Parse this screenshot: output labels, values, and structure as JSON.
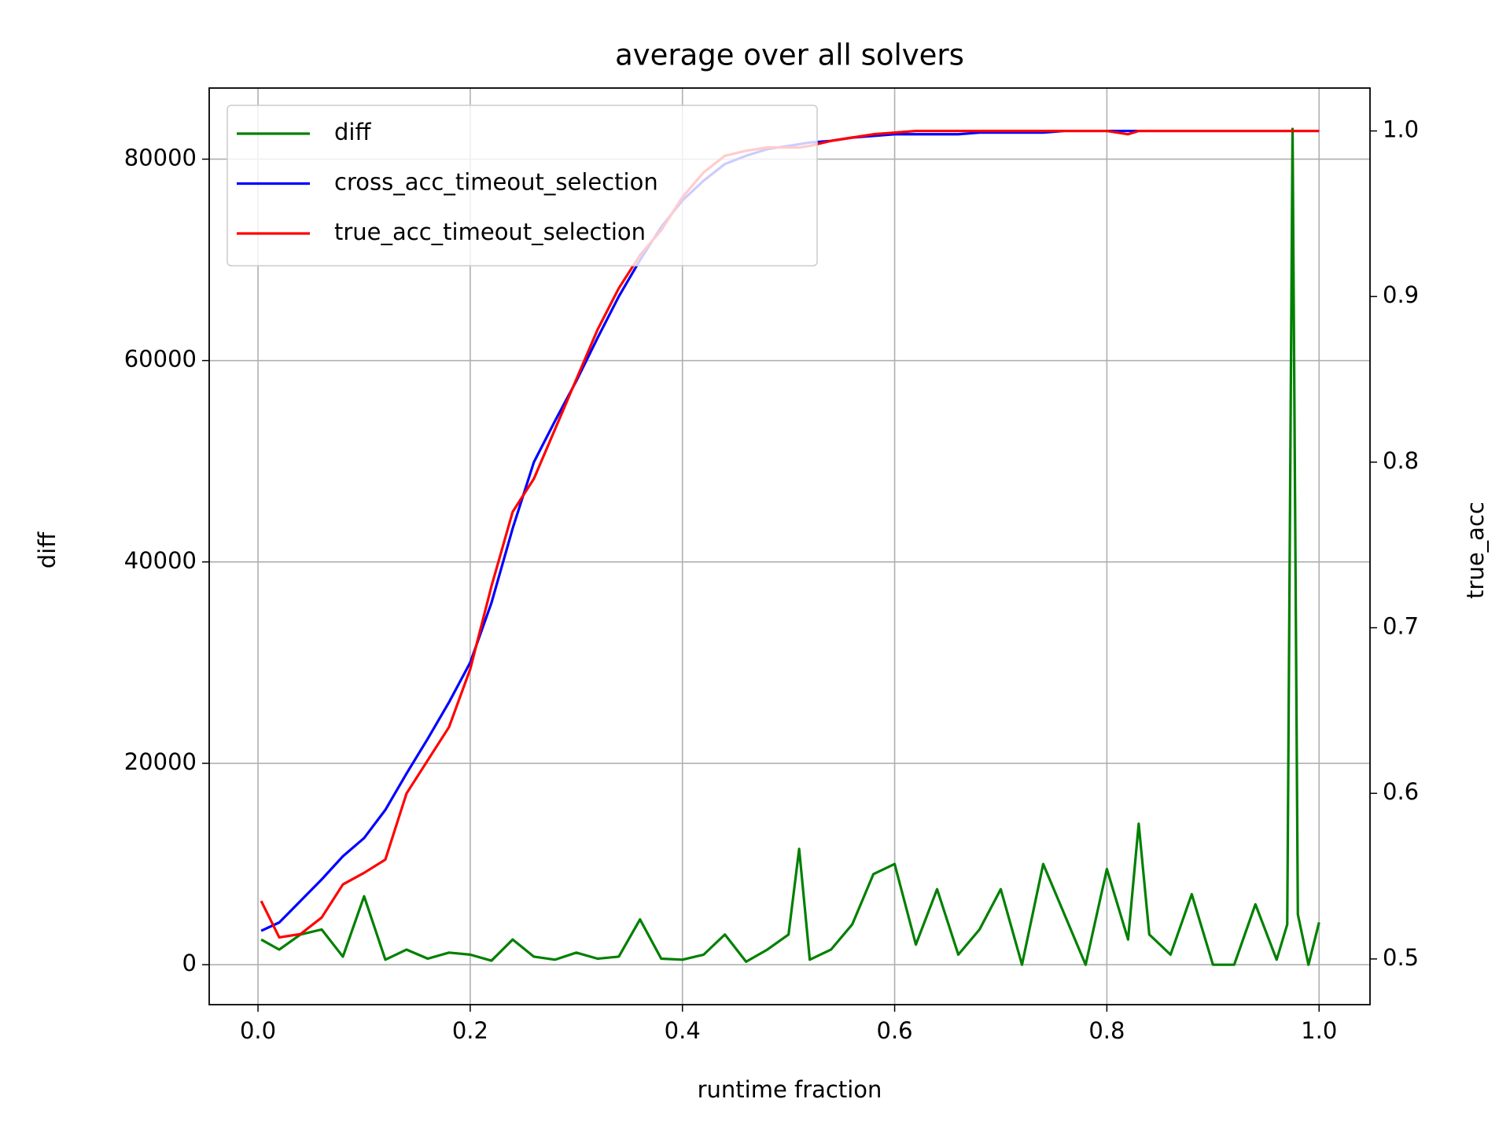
{
  "chart_data": {
    "type": "line",
    "title": "average over all solvers",
    "x_label": "runtime fraction",
    "y_label": "diff",
    "y2_label": "true_acc",
    "y_label_color": "green",
    "y2_label_color": "red",
    "x": [
      0.003,
      0.02,
      0.04,
      0.06,
      0.08,
      0.1,
      0.12,
      0.14,
      0.16,
      0.18,
      0.2,
      0.22,
      0.24,
      0.26,
      0.28,
      0.3,
      0.32,
      0.34,
      0.36,
      0.38,
      0.4,
      0.42,
      0.44,
      0.46,
      0.48,
      0.5,
      0.51,
      0.52,
      0.54,
      0.56,
      0.58,
      0.6,
      0.62,
      0.64,
      0.66,
      0.68,
      0.7,
      0.72,
      0.74,
      0.76,
      0.78,
      0.8,
      0.82,
      0.83,
      0.84,
      0.86,
      0.88,
      0.9,
      0.92,
      0.94,
      0.96,
      0.97,
      0.975,
      0.98,
      0.99,
      1.0
    ],
    "series": [
      {
        "name": "diff",
        "color": "green",
        "axis": "y",
        "values": [
          2500,
          1500,
          3000,
          3500,
          800,
          6800,
          500,
          1500,
          600,
          1200,
          1000,
          400,
          2500,
          800,
          500,
          1200,
          600,
          800,
          4500,
          600,
          500,
          1000,
          3000,
          300,
          1500,
          3000,
          11500,
          500,
          1500,
          4000,
          9000,
          10000,
          2000,
          7500,
          1000,
          3500,
          7500,
          0,
          10000,
          5000,
          0,
          9500,
          2500,
          14000,
          3000,
          1000,
          7000,
          0,
          0,
          6000,
          500,
          4000,
          83000,
          5000,
          0,
          4200
        ]
      },
      {
        "name": "cross_acc_timeout_selection",
        "color": "blue",
        "axis": "y2",
        "values": [
          0.517,
          0.522,
          0.535,
          0.548,
          0.562,
          0.573,
          0.59,
          0.612,
          0.633,
          0.655,
          0.679,
          0.715,
          0.76,
          0.8,
          0.825,
          0.849,
          0.875,
          0.9,
          0.922,
          0.942,
          0.958,
          0.97,
          0.98,
          0.985,
          0.989,
          0.991,
          0.992,
          0.993,
          0.994,
          0.996,
          0.997,
          0.998,
          0.998,
          0.998,
          0.998,
          0.999,
          0.999,
          0.999,
          0.999,
          1.0,
          1.0,
          1.0,
          1.0,
          1.0,
          1.0,
          1.0,
          1.0,
          1.0,
          1.0,
          1.0,
          1.0,
          1.0,
          1.0,
          1.0,
          1.0,
          1.0
        ]
      },
      {
        "name": "true_acc_timeout_selection",
        "color": "red",
        "axis": "y2",
        "values": [
          0.535,
          0.513,
          0.515,
          0.525,
          0.545,
          0.552,
          0.56,
          0.6,
          0.62,
          0.64,
          0.675,
          0.725,
          0.77,
          0.79,
          0.82,
          0.85,
          0.88,
          0.905,
          0.925,
          0.94,
          0.96,
          0.975,
          0.985,
          0.988,
          0.99,
          0.99,
          0.99,
          0.991,
          0.994,
          0.996,
          0.998,
          0.999,
          1.0,
          1.0,
          1.0,
          1.0,
          1.0,
          1.0,
          1.0,
          1.0,
          1.0,
          1.0,
          0.998,
          1.0,
          1.0,
          1.0,
          1.0,
          1.0,
          1.0,
          1.0,
          1.0,
          1.0,
          1.0,
          1.0,
          1.0,
          1.0
        ]
      }
    ],
    "xlim": [
      -0.046,
      1.048
    ],
    "ylim": [
      -3966,
      87062
    ],
    "y2lim": [
      0.4724,
      1.0259
    ],
    "xticks": [
      {
        "value": 0,
        "label": "0.0"
      },
      0.2,
      0.4,
      0.6,
      0.8,
      {
        "value": 1,
        "label": "1.0"
      }
    ],
    "yticks": [
      0,
      20000,
      40000,
      60000,
      80000
    ],
    "y2ticks": [
      0.5,
      0.6,
      0.7,
      0.8,
      0.9,
      {
        "value": 1,
        "label": "1.0"
      }
    ],
    "grid": true,
    "legend": "upper left"
  }
}
